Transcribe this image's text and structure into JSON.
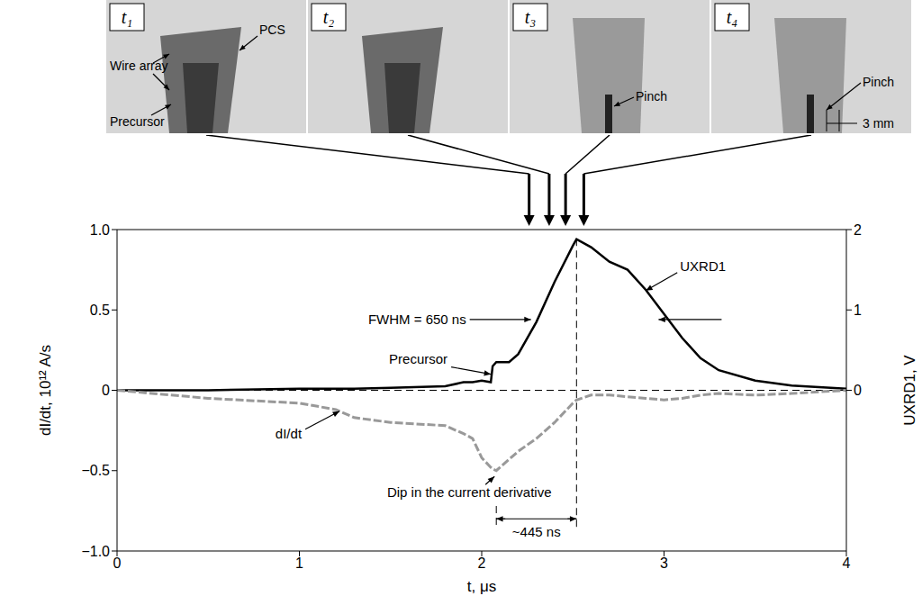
{
  "chart_data": {
    "type": "line",
    "xlabel": "t, μs",
    "ylabel": "dI/dt, 10¹² A/s",
    "y2label": "UXRD1, V",
    "x": [
      0,
      0.5,
      1.0,
      1.2,
      1.3,
      1.5,
      1.8,
      1.9,
      1.95,
      2.0,
      2.05,
      2.06,
      2.08,
      2.15,
      2.2,
      2.3,
      2.4,
      2.5,
      2.52,
      2.6,
      2.7,
      2.8,
      2.9,
      3.0,
      3.1,
      3.2,
      3.3,
      3.5,
      3.7,
      4.0
    ],
    "xlim": [
      0,
      4
    ],
    "xticks": [
      0,
      1,
      2,
      3,
      4
    ],
    "ylim": [
      -1,
      1
    ],
    "yticks": [
      {
        "value": -1,
        "label": "−1.0"
      },
      {
        "value": -0.5,
        "label": "−0.5"
      },
      0,
      0.5,
      {
        "value": 1,
        "label": "1.0"
      }
    ],
    "y2lim": [
      -2,
      2
    ],
    "y2ticks": [
      0,
      1,
      2
    ],
    "series": [
      {
        "name": "UXRD1",
        "color": "#000000",
        "axis": "y2",
        "line_style": "solid",
        "values": [
          0,
          0,
          0.02,
          0.02,
          0.02,
          0.03,
          0.05,
          0.1,
          0.1,
          0.12,
          0.1,
          0.3,
          0.35,
          0.35,
          0.45,
          0.85,
          1.35,
          1.8,
          1.88,
          1.78,
          1.6,
          1.5,
          1.25,
          0.95,
          0.65,
          0.4,
          0.25,
          0.12,
          0.06,
          0.02
        ]
      },
      {
        "name": "dI/dt",
        "color": "#999999",
        "line_style": "dashed",
        "values": [
          0,
          -0.05,
          -0.08,
          -0.12,
          -0.17,
          -0.2,
          -0.22,
          -0.27,
          -0.3,
          -0.42,
          -0.48,
          -0.49,
          -0.5,
          -0.43,
          -0.38,
          -0.3,
          -0.2,
          -0.08,
          -0.06,
          -0.03,
          -0.03,
          -0.04,
          -0.05,
          -0.06,
          -0.05,
          -0.03,
          -0.02,
          -0.03,
          -0.02,
          0
        ]
      }
    ],
    "annotations": [
      "FWHM = 650 ns",
      "Precursor",
      "Dip in the current derivative",
      "~445 ns"
    ],
    "frames": [
      {
        "label": "t₁",
        "time": 2.26,
        "annotations": [
          "Wire array",
          "PCS",
          "Precursor"
        ]
      },
      {
        "label": "t₂",
        "time": 2.37,
        "annotations": []
      },
      {
        "label": "t₃",
        "time": 2.46,
        "annotations": [
          "Pinch"
        ]
      },
      {
        "label": "t₄",
        "time": 2.56,
        "annotations": [
          "Pinch",
          "3 mm"
        ]
      }
    ]
  }
}
